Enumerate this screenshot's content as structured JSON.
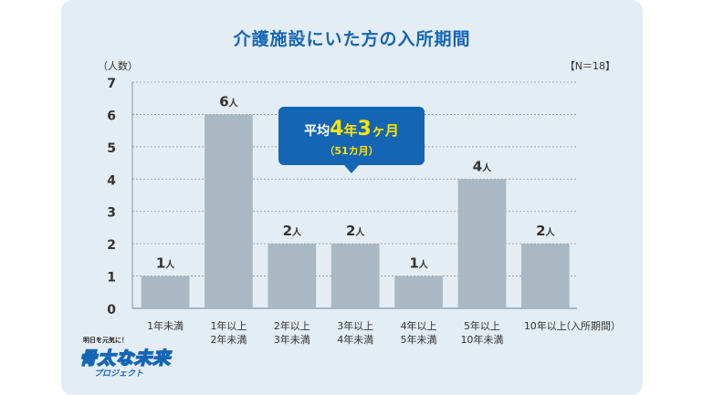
{
  "chart_data": {
    "type": "bar",
    "title": "介護施設にいた方の入所期間",
    "ylabel": "（人数）",
    "xlabel": "（入所期間）",
    "note": "【N＝18】",
    "categories": [
      [
        "1年未満"
      ],
      [
        "1年以上",
        "2年未満"
      ],
      [
        "2年以上",
        "3年未満"
      ],
      [
        "3年以上",
        "4年未満"
      ],
      [
        "4年以上",
        "5年未満"
      ],
      [
        "5年以上",
        "10年未満"
      ],
      [
        "10年以上"
      ]
    ],
    "values": [
      1,
      6,
      2,
      2,
      1,
      4,
      2
    ],
    "value_unit": "人",
    "ylim": [
      0,
      7
    ],
    "yticks": [
      0,
      1,
      2,
      3,
      4,
      5,
      6,
      7
    ],
    "grid": true,
    "bar_color": "#a9b8c2",
    "callout": {
      "line1_prefix": "平均",
      "big1": "4",
      "mid1": "年",
      "big2": "3",
      "mid2": "ヶ月",
      "line2": "（51カ月）",
      "bg_color": "#1565b5",
      "highlight_color": "#ffe400"
    }
  },
  "logo": {
    "small": "明日を元気に！",
    "main": "骨太な未来",
    "sub": "プロジェクト"
  },
  "colors": {
    "title": "#1565b5",
    "card_bg": "#e4edf4",
    "grid": "#7f96aa"
  }
}
